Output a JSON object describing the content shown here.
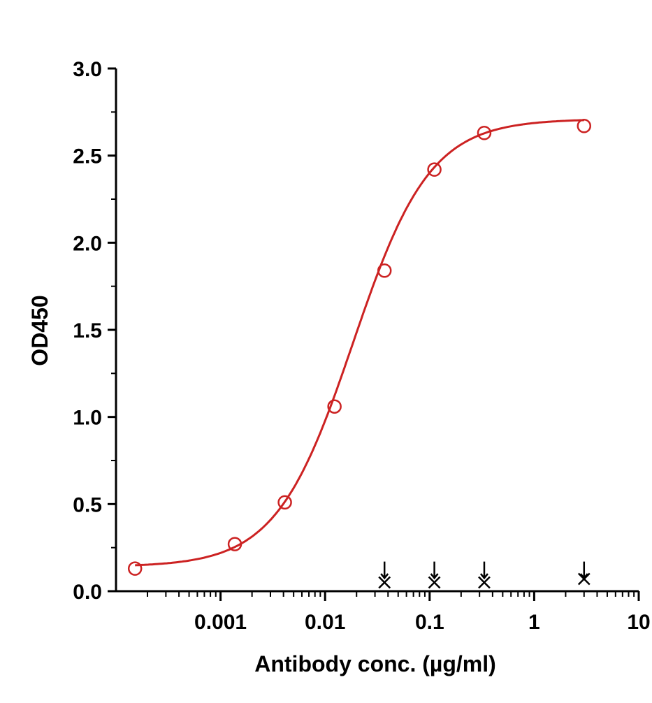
{
  "chart_data": {
    "type": "scatter",
    "title": "",
    "xlabel": "Antibody conc. (µg/ml)",
    "ylabel": "OD450",
    "x_scale": "log",
    "xlim": [
      0.0001,
      10
    ],
    "ylim": [
      0,
      3.0
    ],
    "x_ticks": [
      0.001,
      0.01,
      0.1,
      1,
      10
    ],
    "x_tick_labels": [
      "0.001",
      "0.01",
      "0.1",
      "1",
      "10"
    ],
    "y_ticks": [
      0,
      0.5,
      1.0,
      1.5,
      2.0,
      2.5,
      3.0
    ],
    "y_tick_labels": [
      "0.0",
      "0.5",
      "1.0",
      "1.5",
      "2.0",
      "2.5",
      "3.0"
    ],
    "grid": false,
    "legend": "none",
    "series": [
      {
        "marker": "circle",
        "color": "#cc2222",
        "x": [
          0.000152,
          0.00137,
          0.00412,
          0.0123,
          0.037,
          0.111,
          0.333,
          3.0
        ],
        "y": [
          0.13,
          0.27,
          0.51,
          1.06,
          1.84,
          2.42,
          2.63,
          2.67
        ],
        "fit": "4PL",
        "fit_params": {
          "bottom": 0.14,
          "top": 2.71,
          "ec50": 0.0185,
          "hill": 1.18
        }
      },
      {
        "marker": "cross",
        "color": "#000000",
        "x": [
          0.037,
          0.111,
          0.333,
          3.0
        ],
        "y": [
          0.05,
          0.05,
          0.05,
          0.07
        ]
      }
    ],
    "annotations": [
      {
        "type": "arrow-down",
        "x": 0.037,
        "color": "#000000"
      },
      {
        "type": "arrow-down",
        "x": 0.111,
        "color": "#000000"
      },
      {
        "type": "arrow-down",
        "x": 0.333,
        "color": "#000000"
      },
      {
        "type": "arrow-down",
        "x": 3.0,
        "color": "#000000"
      }
    ]
  }
}
